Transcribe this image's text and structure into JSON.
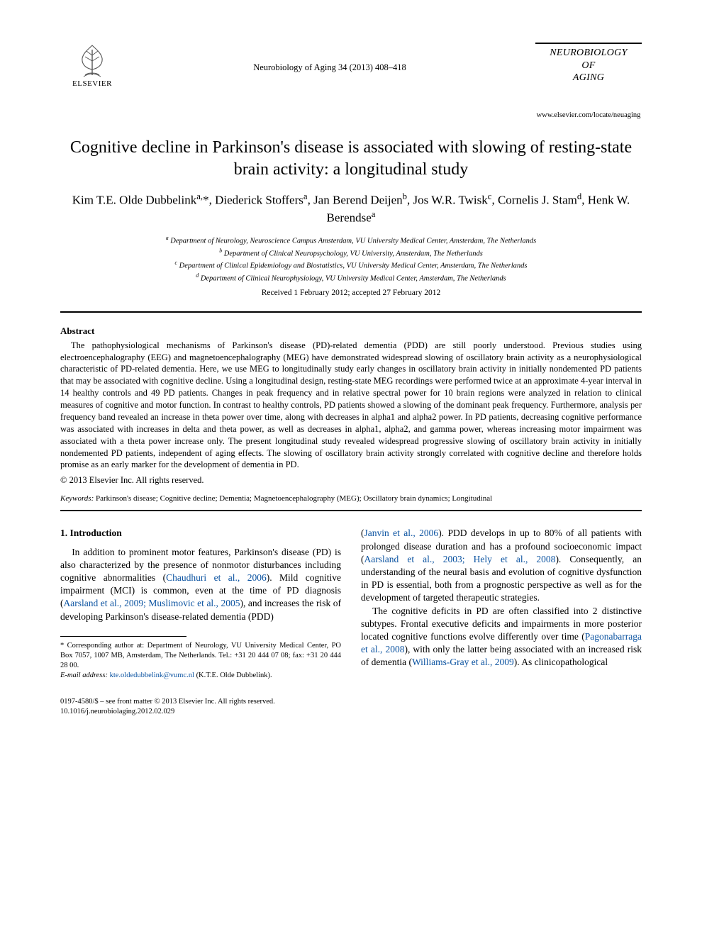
{
  "header": {
    "publisher": "ELSEVIER",
    "citation": "Neurobiology of Aging 34 (2013) 408–418",
    "journal_title_lines": [
      "NEUROBIOLOGY",
      "OF",
      "AGING"
    ],
    "journal_url": "www.elsevier.com/locate/neuaging"
  },
  "article": {
    "title": "Cognitive decline in Parkinson's disease is associated with slowing of resting-state brain activity: a longitudinal study",
    "authors_html": "Kim T.E. Olde Dubbelink<sup>a,</sup>*, Diederick Stoffers<sup>a</sup>, Jan Berend Deijen<sup>b</sup>, Jos W.R. Twisk<sup>c</sup>, Cornelis J. Stam<sup>d</sup>, Henk W. Berendse<sup>a</sup>",
    "affiliations": [
      "a Department of Neurology, Neuroscience Campus Amsterdam, VU University Medical Center, Amsterdam, The Netherlands",
      "b Department of Clinical Neuropsychology, VU University, Amsterdam, The Netherlands",
      "c Department of Clinical Epidemiology and Biostatistics, VU University Medical Center, Amsterdam, The Netherlands",
      "d Department of Clinical Neurophysiology, VU University Medical Center, Amsterdam, The Netherlands"
    ],
    "dates": "Received 1 February 2012; accepted 27 February 2012"
  },
  "abstract": {
    "heading": "Abstract",
    "body": "The pathophysiological mechanisms of Parkinson's disease (PD)-related dementia (PDD) are still poorly understood. Previous studies using electroencephalography (EEG) and magnetoencephalography (MEG) have demonstrated widespread slowing of oscillatory brain activity as a neurophysiological characteristic of PD-related dementia. Here, we use MEG to longitudinally study early changes in oscillatory brain activity in initially nondemented PD patients that may be associated with cognitive decline. Using a longitudinal design, resting-state MEG recordings were performed twice at an approximate 4-year interval in 14 healthy controls and 49 PD patients. Changes in peak frequency and in relative spectral power for 10 brain regions were analyzed in relation to clinical measures of cognitive and motor function. In contrast to healthy controls, PD patients showed a slowing of the dominant peak frequency. Furthermore, analysis per frequency band revealed an increase in theta power over time, along with decreases in alpha1 and alpha2 power. In PD patients, decreasing cognitive performance was associated with increases in delta and theta power, as well as decreases in alpha1, alpha2, and gamma power, whereas increasing motor impairment was associated with a theta power increase only. The present longitudinal study revealed widespread progressive slowing of oscillatory brain activity in initially nondemented PD patients, independent of aging effects. The slowing of oscillatory brain activity strongly correlated with cognitive decline and therefore holds promise as an early marker for the development of dementia in PD.",
    "copyright": "© 2013 Elsevier Inc. All rights reserved.",
    "keywords_label": "Keywords:",
    "keywords": "Parkinson's disease; Cognitive decline; Dementia; Magnetoencephalography (MEG); Oscillatory brain dynamics; Longitudinal"
  },
  "intro": {
    "heading": "1. Introduction",
    "col1_p1_pre": "In addition to prominent motor features, Parkinson's disease (PD) is also characterized by the presence of nonmotor disturbances including cognitive abnormalities (",
    "col1_p1_link1": "Chaudhuri et al., 2006",
    "col1_p1_mid1": "). Mild cognitive impairment (MCI) is common, even at the time of PD diagnosis (",
    "col1_p1_link2": "Aarsland et al., 2009; Muslimovic et al., 2005",
    "col1_p1_mid2": "), and increases the risk of developing Parkinson's disease-related dementia (PDD)",
    "col2_p1_pre": "(",
    "col2_p1_link1": "Janvin et al., 2006",
    "col2_p1_mid1": "). PDD develops in up to 80% of all patients with prolonged disease duration and has a profound socioeconomic impact (",
    "col2_p1_link2": "Aarsland et al., 2003; Hely et al., 2008",
    "col2_p1_mid2": "). Consequently, an understanding of the neural basis and evolution of cognitive dysfunction in PD is essential, both from a prognostic perspective as well as for the development of targeted therapeutic strategies.",
    "col2_p2_pre": "The cognitive deficits in PD are often classified into 2 distinctive subtypes. Frontal executive deficits and impairments in more posterior located cognitive functions evolve differently over time (",
    "col2_p2_link1": "Pagonabarraga et al., 2008",
    "col2_p2_mid1": "), with only the latter being associated with an increased risk of dementia (",
    "col2_p2_link2": "Williams-Gray et al., 2009",
    "col2_p2_end": "). As clinicopathological"
  },
  "footnote": {
    "corr": "* Corresponding author at: Department of Neurology, VU University Medical Center, PO Box 7057, 1007 MB, Amsterdam, The Netherlands. Tel.: +31 20 444 07 08; fax: +31 20 444 28 00.",
    "email_label": "E-mail address:",
    "email": "kte.oldedubbelink@vumc.nl",
    "email_suffix": "(K.T.E. Olde Dubbelink)."
  },
  "footer": {
    "line1": "0197-4580/$ – see front matter © 2013 Elsevier Inc. All rights reserved.",
    "line2": "10.1016/j.neurobiolaging.2012.02.029"
  },
  "colors": {
    "link": "#0a52a0",
    "text": "#000000",
    "bg": "#ffffff"
  }
}
